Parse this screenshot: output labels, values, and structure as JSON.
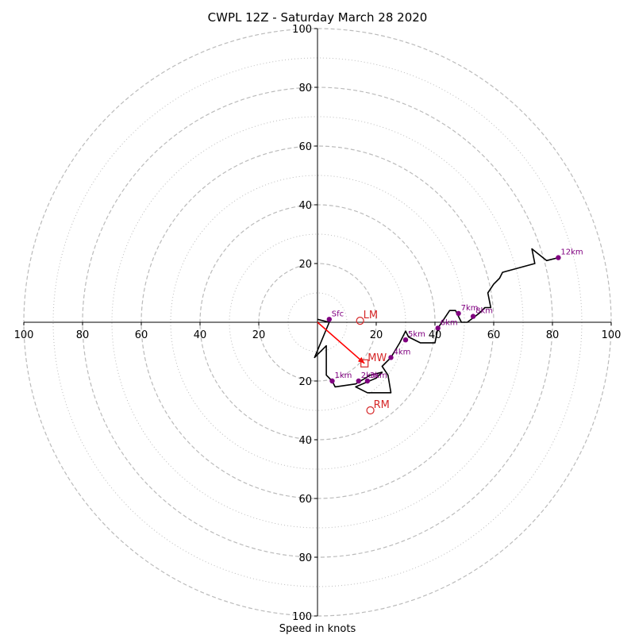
{
  "chart_data": {
    "type": "scatter",
    "title": "CWPL 12Z - Saturday March 28 2020",
    "xlabel": "Speed in knots",
    "ylabel": "",
    "xlim": [
      -100,
      100
    ],
    "ylim": [
      -100,
      100
    ],
    "rings_major": [
      20,
      40,
      60,
      80,
      100
    ],
    "rings_minor": [
      10,
      30,
      50,
      70,
      90
    ],
    "x_tick_labels": [
      "100",
      "80",
      "60",
      "40",
      "20",
      "20",
      "40",
      "60",
      "80",
      "100"
    ],
    "y_tick_labels": [
      "100",
      "80",
      "60",
      "40",
      "20",
      "20",
      "40",
      "60",
      "80",
      "100"
    ],
    "colors": {
      "hodograph": "#000000",
      "levels": "#800080",
      "motion": "#d62728",
      "shear": "#ff0000",
      "grid": "#bbbbbb",
      "axis": "#000000"
    },
    "hodograph_trace": [
      [
        0,
        1
      ],
      [
        4,
        0
      ],
      [
        -1,
        -12
      ],
      [
        3,
        -8
      ],
      [
        3,
        -18
      ],
      [
        5,
        -20
      ],
      [
        6,
        -22
      ],
      [
        13,
        -21
      ],
      [
        18,
        -18
      ],
      [
        22,
        -17
      ],
      [
        20,
        -19
      ],
      [
        13,
        -22
      ],
      [
        17,
        -24
      ],
      [
        25,
        -24
      ],
      [
        24,
        -18
      ],
      [
        22,
        -15
      ],
      [
        25,
        -12
      ],
      [
        28,
        -7
      ],
      [
        30,
        -3
      ],
      [
        31,
        -5
      ],
      [
        35,
        -7
      ],
      [
        40,
        -7
      ],
      [
        41,
        -2
      ],
      [
        43,
        1
      ],
      [
        45,
        4
      ],
      [
        47,
        4
      ],
      [
        49,
        0
      ],
      [
        51,
        0
      ],
      [
        55,
        3
      ],
      [
        57,
        5
      ],
      [
        59,
        5
      ],
      [
        58,
        10
      ],
      [
        60,
        13
      ],
      [
        62,
        15
      ],
      [
        63,
        17
      ],
      [
        74,
        20
      ],
      [
        73,
        25
      ],
      [
        78,
        21
      ],
      [
        82,
        22
      ]
    ],
    "levels": [
      {
        "label": "Sfc",
        "x": 4,
        "y": 1
      },
      {
        "label": "1km",
        "x": 5,
        "y": -20
      },
      {
        "label": "2km",
        "x": 14,
        "y": -20
      },
      {
        "label": "3km",
        "x": 17,
        "y": -20
      },
      {
        "label": "4km",
        "x": 25,
        "y": -12
      },
      {
        "label": "5km",
        "x": 30,
        "y": -6
      },
      {
        "label": "6km",
        "x": 41,
        "y": -2
      },
      {
        "label": "7km",
        "x": 48,
        "y": 3
      },
      {
        "label": "8km",
        "x": 53,
        "y": 2
      },
      {
        "label": "12km",
        "x": 82,
        "y": 22
      }
    ],
    "storm_motion": [
      {
        "label": "LM",
        "x": 14.5,
        "y": 0.5,
        "marker": "circle"
      },
      {
        "label": "MW",
        "x": 16,
        "y": -14,
        "marker": "square"
      },
      {
        "label": "RM",
        "x": 18,
        "y": -30,
        "marker": "circle"
      }
    ],
    "shear_arrow": {
      "from": [
        0,
        0
      ],
      "to": [
        16,
        -14
      ]
    },
    "grid": true
  }
}
